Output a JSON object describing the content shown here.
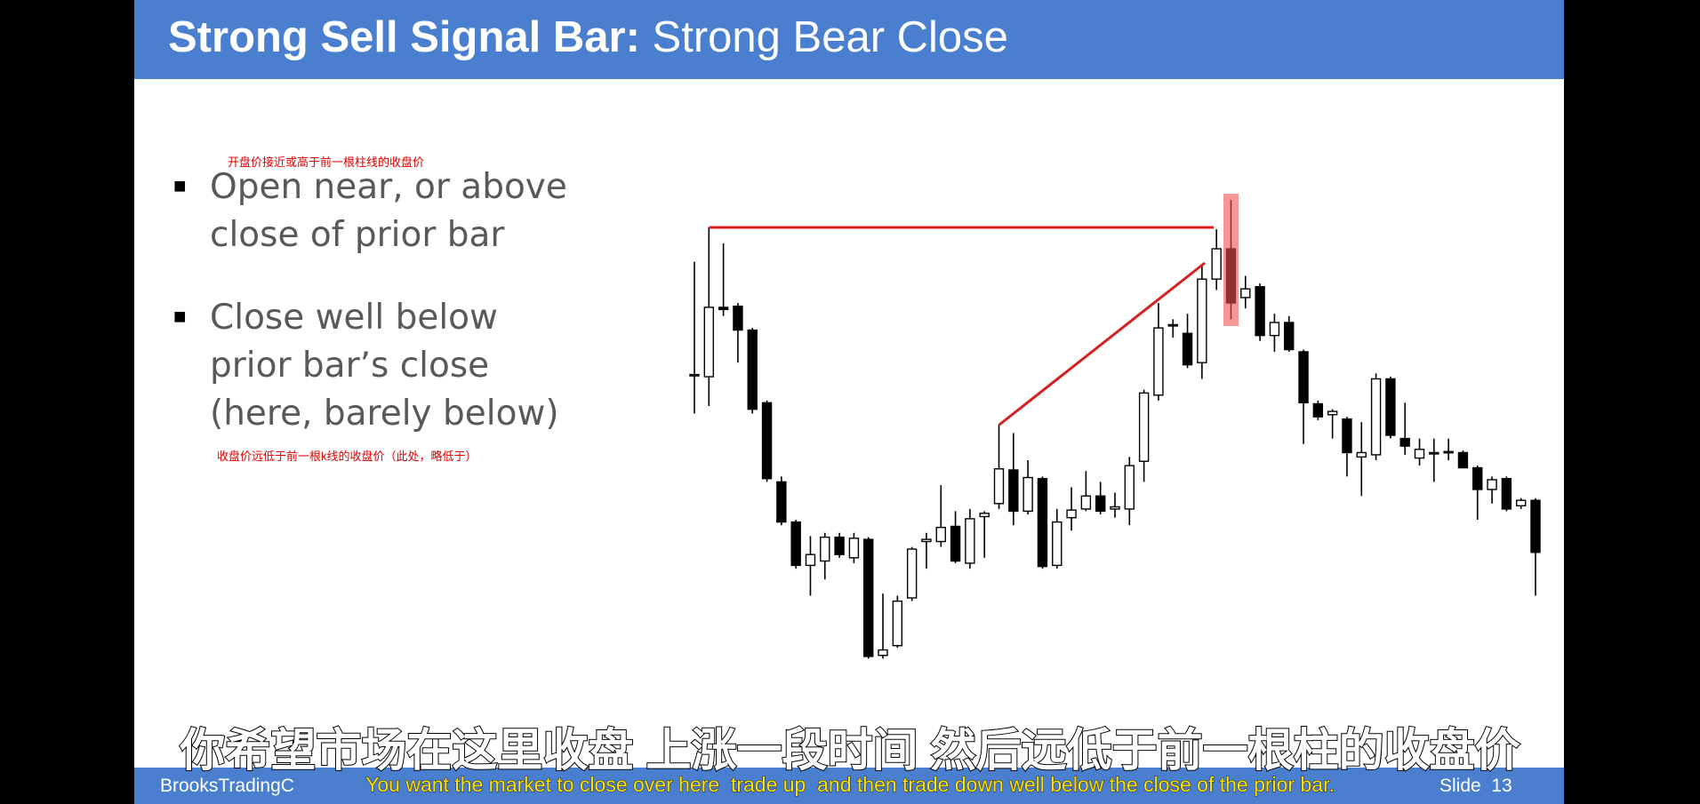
{
  "header": {
    "title_bold": "Strong Sell Signal Bar:",
    "title_rest": "Strong Bear Close"
  },
  "bullets": [
    {
      "lines": [
        "Open near, or above",
        "close of prior bar"
      ],
      "note": "开盘价接近或高于前一根柱线的收盘价"
    },
    {
      "lines": [
        "Close well below",
        "prior bar’s close",
        "(here, barely below)"
      ],
      "note": "收盘价远低于前一根k线的收盘价（此处，略低于）"
    }
  ],
  "chart_data": {
    "type": "candlestick",
    "open": [
      274,
      272,
      336,
      337,
      315,
      248,
      175,
      138,
      98,
      102,
      124,
      105,
      122,
      15,
      24,
      68,
      120,
      120,
      134,
      100,
      143,
      155,
      186,
      148,
      178,
      98,
      142,
      150,
      162,
      150,
      150,
      194,
      255,
      320,
      312,
      285,
      362,
      390,
      345,
      355,
      310,
      322,
      295,
      247,
      237,
      233,
      198,
      200,
      270,
      215,
      197,
      202,
      203,
      202,
      188,
      168,
      178,
      153,
      158
    ],
    "high": [
      378,
      410,
      395,
      340,
      317,
      250,
      180,
      140,
      125,
      128,
      128,
      128,
      124,
      72,
      70,
      115,
      128,
      172,
      148,
      150,
      148,
      228,
      220,
      195,
      180,
      150,
      170,
      185,
      175,
      165,
      198,
      260,
      340,
      325,
      330,
      375,
      408,
      435,
      365,
      358,
      330,
      328,
      297,
      250,
      242,
      235,
      230,
      275,
      272,
      248,
      215,
      215,
      215,
      204,
      190,
      180,
      180,
      160,
      160
    ],
    "low": [
      238,
      245,
      328,
      285,
      238,
      175,
      135,
      95,
      70,
      85,
      105,
      100,
      12,
      12,
      22,
      65,
      95,
      115,
      100,
      95,
      105,
      150,
      135,
      145,
      95,
      95,
      130,
      148,
      145,
      142,
      135,
      175,
      250,
      308,
      280,
      270,
      352,
      325,
      335,
      305,
      295,
      295,
      210,
      232,
      215,
      180,
      162,
      195,
      215,
      200,
      190,
      175,
      195,
      188,
      140,
      155,
      148,
      150,
      70
    ],
    "close": [
      274,
      336,
      334,
      315,
      242,
      178,
      138,
      98,
      108,
      124,
      108,
      123,
      14,
      20,
      65,
      113,
      122,
      133,
      102,
      141,
      146,
      187,
      148,
      179,
      97,
      138,
      149,
      162,
      148,
      152,
      190,
      257,
      317,
      320,
      283,
      362,
      390,
      340,
      353,
      310,
      322,
      297,
      248,
      235,
      240,
      202,
      202,
      270,
      218,
      208,
      205,
      202,
      203,
      188,
      168,
      177,
      150,
      158,
      110
    ],
    "ylim": [
      0,
      440
    ],
    "up_color": "#ffffff",
    "down_color": "#000000",
    "wick_color": "#000000"
  },
  "footer": {
    "brand": "BrooksTradingC",
    "slide": "Slide  13"
  },
  "subtitles": {
    "zh": "你希望市场在这里收盘 上涨一段时间 然后远低于前一根柱的收盘价",
    "en": "You want the market to close over here  trade up  and then trade down well below the close of the prior bar."
  }
}
